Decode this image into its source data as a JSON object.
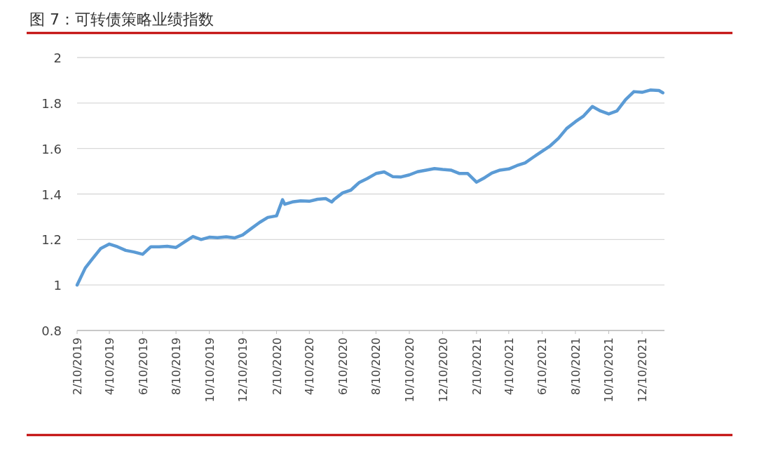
{
  "chart_data": {
    "type": "line",
    "title": "图 7：可转债策略业绩指数",
    "x": [
      "2019-02-10",
      "2019-02-25",
      "2019-03-10",
      "2019-03-25",
      "2019-04-10",
      "2019-04-25",
      "2019-05-10",
      "2019-05-25",
      "2019-06-10",
      "2019-06-25",
      "2019-07-10",
      "2019-07-25",
      "2019-08-10",
      "2019-08-25",
      "2019-09-10",
      "2019-09-25",
      "2019-10-10",
      "2019-10-25",
      "2019-11-10",
      "2019-11-25",
      "2019-12-10",
      "2019-12-25",
      "2020-01-10",
      "2020-01-25",
      "2020-02-10",
      "2020-02-21",
      "2020-02-25",
      "2020-03-10",
      "2020-03-25",
      "2020-04-10",
      "2020-04-25",
      "2020-05-10",
      "2020-05-21",
      "2020-05-25",
      "2020-06-10",
      "2020-06-25",
      "2020-07-10",
      "2020-07-25",
      "2020-08-10",
      "2020-08-25",
      "2020-09-10",
      "2020-09-25",
      "2020-10-10",
      "2020-10-25",
      "2020-11-10",
      "2020-11-25",
      "2020-12-10",
      "2020-12-25",
      "2021-01-10",
      "2021-01-25",
      "2021-02-10",
      "2021-02-25",
      "2021-03-10",
      "2021-03-25",
      "2021-04-10",
      "2021-04-25",
      "2021-05-10",
      "2021-05-25",
      "2021-06-10",
      "2021-06-25",
      "2021-07-10",
      "2021-07-25",
      "2021-08-10",
      "2021-08-25",
      "2021-09-10",
      "2021-09-25",
      "2021-10-10",
      "2021-10-25",
      "2021-11-10",
      "2021-11-25",
      "2021-12-10",
      "2021-12-25",
      "2022-01-10",
      "2022-01-17"
    ],
    "series": [
      {
        "color": "#5b9bd5",
        "values": [
          1.0,
          1.075,
          1.115,
          1.16,
          1.18,
          1.168,
          1.152,
          1.145,
          1.135,
          1.168,
          1.168,
          1.17,
          1.165,
          1.188,
          1.213,
          1.2,
          1.21,
          1.208,
          1.212,
          1.207,
          1.22,
          1.247,
          1.275,
          1.297,
          1.304,
          1.375,
          1.355,
          1.365,
          1.37,
          1.368,
          1.377,
          1.38,
          1.365,
          1.375,
          1.405,
          1.417,
          1.45,
          1.468,
          1.49,
          1.497,
          1.476,
          1.475,
          1.484,
          1.498,
          1.505,
          1.512,
          1.508,
          1.505,
          1.49,
          1.49,
          1.452,
          1.472,
          1.492,
          1.505,
          1.51,
          1.525,
          1.537,
          1.562,
          1.588,
          1.612,
          1.645,
          1.688,
          1.718,
          1.743,
          1.785,
          1.765,
          1.752,
          1.765,
          1.815,
          1.85,
          1.847,
          1.857,
          1.855,
          1.845
        ]
      }
    ],
    "xlim": [
      "2019-02-10",
      "2022-01-20"
    ],
    "xticks": [
      {
        "value": "2019-02-10",
        "label": "2/10/2019"
      },
      {
        "value": "2019-04-10",
        "label": "4/10/2019"
      },
      {
        "value": "2019-06-10",
        "label": "6/10/2019"
      },
      {
        "value": "2019-08-10",
        "label": "8/10/2019"
      },
      {
        "value": "2019-10-10",
        "label": "10/10/2019"
      },
      {
        "value": "2019-12-10",
        "label": "12/10/2019"
      },
      {
        "value": "2020-02-10",
        "label": "2/10/2020"
      },
      {
        "value": "2020-04-10",
        "label": "4/10/2020"
      },
      {
        "value": "2020-06-10",
        "label": "6/10/2020"
      },
      {
        "value": "2020-08-10",
        "label": "8/10/2020"
      },
      {
        "value": "2020-10-10",
        "label": "10/10/2020"
      },
      {
        "value": "2020-12-10",
        "label": "12/10/2020"
      },
      {
        "value": "2021-02-10",
        "label": "2/10/2021"
      },
      {
        "value": "2021-04-10",
        "label": "4/10/2021"
      },
      {
        "value": "2021-06-10",
        "label": "6/10/2021"
      },
      {
        "value": "2021-08-10",
        "label": "8/10/2021"
      },
      {
        "value": "2021-10-10",
        "label": "10/10/2021"
      },
      {
        "value": "2021-12-10",
        "label": "12/10/2021"
      }
    ],
    "ylim": [
      0.8,
      2
    ],
    "yticks": [
      0.8,
      1,
      1.2,
      1.4,
      1.6,
      1.8,
      2
    ],
    "grid": "y",
    "line_style": "solid"
  }
}
